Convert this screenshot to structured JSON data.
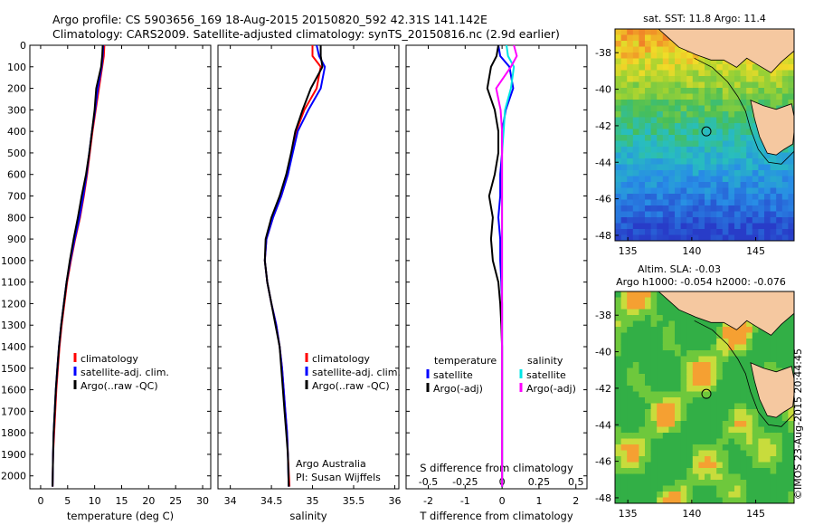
{
  "header": {
    "line1": "Argo profile: CS 5903656_169 18-Aug-2015 20150820_592 42.31S 141.142E",
    "line2": "Climatology: CARS2009. Satellite-adjusted climatology: synTS_20150816.nc (2.9d earlier)"
  },
  "colors": {
    "climatology": "#ff0000",
    "satellite": "#0000ff",
    "argo": "#000000",
    "salinity_satellite": "#00e5e5",
    "salinity_argo": "#ff00ff",
    "land": "#f5c8a0"
  },
  "chart_data": [
    {
      "type": "line",
      "name": "temperature-profile",
      "xlabel": "temperature (deg C)",
      "ylabel": "",
      "xlim": [
        -2,
        31.5
      ],
      "ylim": [
        2060,
        0
      ],
      "xticks": [
        "0",
        "5",
        "10",
        "15",
        "20",
        "25",
        "30"
      ],
      "yticks": [
        "0",
        "100",
        "200",
        "300",
        "400",
        "500",
        "600",
        "700",
        "800",
        "900",
        "1000",
        "1100",
        "1200",
        "1300",
        "1400",
        "1500",
        "1600",
        "1700",
        "1800",
        "1900",
        "2000"
      ],
      "legend": [
        "climatology",
        "satellite-adj. clim.",
        "Argo(..raw -QC)"
      ],
      "legend_position": "lower-center",
      "series": [
        {
          "name": "climatology",
          "x": [
            11.8,
            11.7,
            11.4,
            10.8,
            10.2,
            9.6,
            9.1,
            8.6,
            8.0,
            7.3,
            6.4,
            5.6,
            4.9,
            4.4,
            3.9,
            3.5,
            3.2,
            2.9,
            2.7,
            2.5,
            2.3,
            2.2
          ],
          "y": [
            0,
            50,
            100,
            200,
            300,
            400,
            500,
            600,
            700,
            800,
            900,
            1000,
            1100,
            1200,
            1300,
            1400,
            1500,
            1600,
            1700,
            1800,
            1900,
            2050
          ]
        },
        {
          "name": "satellite-adj. clim.",
          "x": [
            11.6,
            11.5,
            11.3,
            10.6,
            10.1,
            9.5,
            9.0,
            8.5,
            7.9,
            7.2,
            6.3,
            5.5,
            4.8,
            4.3,
            3.8,
            3.4,
            3.1,
            2.8,
            2.6,
            2.4,
            2.3,
            2.2
          ],
          "y": [
            0,
            50,
            100,
            200,
            300,
            400,
            500,
            600,
            700,
            800,
            900,
            1000,
            1100,
            1200,
            1300,
            1400,
            1500,
            1600,
            1700,
            1800,
            1900,
            2050
          ]
        },
        {
          "name": "Argo(..raw -QC)",
          "x": [
            11.5,
            11.4,
            11.2,
            10.3,
            10.0,
            9.5,
            9.0,
            8.4,
            7.6,
            6.9,
            6.1,
            5.4,
            4.8,
            4.3,
            3.8,
            3.4,
            3.1,
            2.8,
            2.6,
            2.4,
            2.3,
            2.2
          ],
          "y": [
            0,
            50,
            100,
            200,
            300,
            400,
            500,
            600,
            700,
            800,
            900,
            1000,
            1100,
            1200,
            1300,
            1400,
            1500,
            1600,
            1700,
            1800,
            1900,
            2050
          ]
        }
      ]
    },
    {
      "type": "line",
      "name": "salinity-profile",
      "xlabel": "salinity",
      "xlim": [
        33.85,
        36.05
      ],
      "ylim": [
        2060,
        0
      ],
      "xticks": [
        "34",
        "34.5",
        "35",
        "35.5",
        "36"
      ],
      "legend": [
        "climatology",
        "satellite-adj. clim.",
        "Argo(..raw -QC)"
      ],
      "legend_position": "lower-right",
      "annotations": [
        "Argo Australia",
        "PI: Susan Wijffels"
      ],
      "series": [
        {
          "name": "climatology",
          "x": [
            35.0,
            35.0,
            35.1,
            35.05,
            34.9,
            34.8,
            34.75,
            34.7,
            34.62,
            34.52,
            34.44,
            34.42,
            34.45,
            34.5,
            34.56,
            34.6,
            34.63,
            34.65,
            34.67,
            34.69,
            34.7,
            34.72
          ],
          "y": [
            0,
            50,
            100,
            200,
            300,
            400,
            500,
            600,
            700,
            800,
            900,
            1000,
            1100,
            1200,
            1300,
            1400,
            1500,
            1600,
            1700,
            1800,
            1900,
            2050
          ]
        },
        {
          "name": "satellite-adj. clim.",
          "x": [
            35.05,
            35.08,
            35.15,
            35.1,
            34.95,
            34.82,
            34.76,
            34.7,
            34.62,
            34.52,
            34.44,
            34.42,
            34.45,
            34.5,
            34.56,
            34.6,
            34.63,
            34.65,
            34.67,
            34.69,
            34.7,
            34.71
          ],
          "y": [
            0,
            50,
            100,
            200,
            300,
            400,
            500,
            600,
            700,
            800,
            900,
            1000,
            1100,
            1200,
            1300,
            1400,
            1500,
            1600,
            1700,
            1800,
            1900,
            2050
          ]
        },
        {
          "name": "Argo(..raw -QC)",
          "x": [
            35.1,
            35.1,
            35.12,
            34.98,
            34.88,
            34.79,
            34.74,
            34.68,
            34.6,
            34.5,
            34.43,
            34.42,
            34.45,
            34.5,
            34.55,
            34.6,
            34.62,
            34.64,
            34.66,
            34.68,
            34.7,
            34.71
          ],
          "y": [
            0,
            50,
            100,
            200,
            300,
            400,
            500,
            600,
            700,
            800,
            900,
            1000,
            1100,
            1200,
            1300,
            1400,
            1500,
            1600,
            1700,
            1800,
            1900,
            2050
          ]
        }
      ]
    },
    {
      "type": "line",
      "name": "difference-profile",
      "xlabel": "T difference from climatology",
      "top_label": "S difference from climatology",
      "xlim": [
        -2.6,
        2.3
      ],
      "ylim": [
        2060,
        0
      ],
      "xticks_bottom": [
        "-2",
        "-1",
        "0",
        "1",
        "2"
      ],
      "xticks_top": [
        "-0.5",
        "-0.25",
        "0",
        "0.25",
        "0.5"
      ],
      "legend_temperature": {
        "title": "temperature",
        "items": [
          "satellite",
          "Argo(-adj)"
        ]
      },
      "legend_salinity": {
        "title": "salinity",
        "items": [
          "satellite",
          "Argo(-adj)"
        ]
      },
      "series": [
        {
          "name": "temperature satellite",
          "x": [
            -0.1,
            -0.05,
            0.2,
            0.3,
            0.1,
            0.0,
            0.0,
            -0.05,
            -0.05,
            -0.1,
            -0.05,
            -0.05,
            -0.02,
            0.0,
            0.0,
            0.0,
            0.0,
            0.0,
            0.0,
            0.0,
            0.0,
            0.0
          ],
          "y": [
            0,
            50,
            100,
            200,
            300,
            400,
            500,
            600,
            700,
            800,
            900,
            1000,
            1100,
            1200,
            1300,
            1400,
            1500,
            1600,
            1700,
            1800,
            1900,
            2050
          ]
        },
        {
          "name": "temperature Argo(-adj)",
          "x": [
            -0.1,
            -0.15,
            -0.3,
            -0.4,
            -0.2,
            -0.1,
            -0.1,
            -0.2,
            -0.35,
            -0.25,
            -0.3,
            -0.25,
            -0.1,
            -0.05,
            -0.02,
            0.0,
            0.0,
            0.0,
            0.0,
            0.0,
            0.0,
            0.0
          ],
          "y": [
            0,
            50,
            100,
            200,
            300,
            400,
            500,
            600,
            700,
            800,
            900,
            1000,
            1100,
            1200,
            1300,
            1400,
            1500,
            1600,
            1700,
            1800,
            1900,
            2050
          ]
        },
        {
          "name": "salinity satellite",
          "x": [
            0.03,
            0.04,
            0.08,
            0.06,
            0.02,
            0.01,
            0.0,
            0.0,
            0.0,
            0.0,
            0.0,
            0.0,
            0.0,
            0.0,
            0.0,
            0.0,
            0.0,
            0.0,
            0.0,
            0.0,
            0.0,
            0.0
          ],
          "y": [
            0,
            50,
            100,
            200,
            300,
            400,
            500,
            600,
            700,
            800,
            900,
            1000,
            1100,
            1200,
            1300,
            1400,
            1500,
            1600,
            1700,
            1800,
            1900,
            2050
          ]
        },
        {
          "name": "salinity Argo(-adj)",
          "x": [
            0.08,
            0.1,
            0.06,
            -0.04,
            -0.01,
            0.0,
            0.0,
            0.0,
            0.0,
            0.0,
            0.0,
            0.0,
            0.0,
            0.0,
            0.0,
            0.0,
            0.0,
            0.0,
            0.0,
            0.0,
            0.0,
            0.0
          ],
          "y": [
            0,
            50,
            100,
            200,
            300,
            400,
            500,
            600,
            700,
            800,
            900,
            1000,
            1100,
            1200,
            1300,
            1400,
            1500,
            1600,
            1700,
            1800,
            1900,
            2050
          ]
        }
      ]
    },
    {
      "type": "heatmap",
      "name": "sst-map",
      "title": "sat. SST: 11.8 Argo: 11.4",
      "xlim": [
        134,
        148
      ],
      "ylim": [
        -48.3,
        -36.7
      ],
      "xticks": [
        "135",
        "140",
        "145"
      ],
      "yticks": [
        "-38",
        "-40",
        "-42",
        "-44",
        "-46",
        "-48"
      ],
      "marker": {
        "lon": 141.142,
        "lat": -42.31
      }
    },
    {
      "type": "heatmap",
      "name": "sla-map",
      "title": "Altim. SLA: -0.03",
      "subtitle": "Argo h1000: -0.054 h2000: -0.076",
      "xlim": [
        134,
        148
      ],
      "ylim": [
        -48.3,
        -36.7
      ],
      "xticks": [
        "135",
        "140",
        "145"
      ],
      "yticks": [
        "-38",
        "-40",
        "-42",
        "-44",
        "-46",
        "-48"
      ],
      "marker": {
        "lon": 141.142,
        "lat": -42.31
      }
    }
  ],
  "stamp": "©IMOS 23-Aug-2015 20:44:45"
}
